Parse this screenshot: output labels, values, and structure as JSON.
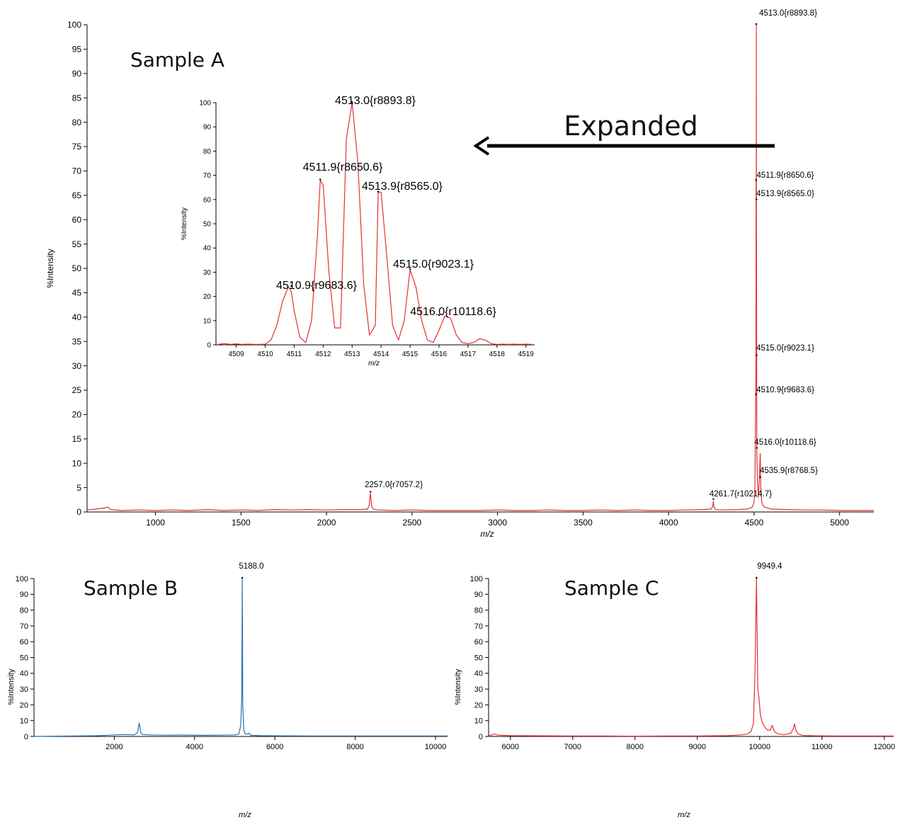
{
  "colors": {
    "red": "#e53030",
    "blue": "#2a6fb0",
    "axis": "#000000"
  },
  "annotation": {
    "arrow_label": "Expanded"
  },
  "chart_data": [
    {
      "id": "sampleA",
      "type": "line",
      "title": "Sample A",
      "xlabel": "m/z",
      "ylabel": "%Intensity",
      "xlim": [
        600,
        5200
      ],
      "ylim": [
        0,
        100
      ],
      "xticks": [
        1000,
        1500,
        2000,
        2500,
        3000,
        3500,
        4000,
        4500,
        5000
      ],
      "yticks": [
        0,
        5,
        10,
        15,
        20,
        25,
        30,
        35,
        40,
        45,
        50,
        55,
        60,
        65,
        70,
        75,
        80,
        85,
        90,
        95,
        100
      ],
      "color": "red",
      "series": [
        {
          "x": [
            600,
            650,
            700,
            720,
            740,
            800,
            900,
            1000,
            1100,
            1200,
            1300,
            1400,
            1500,
            1600,
            1700,
            1800,
            1900,
            2000,
            2100,
            2200,
            2240,
            2250,
            2255,
            2257,
            2260,
            2265,
            2275,
            2300,
            2400,
            2500,
            2600,
            2700,
            2800,
            2900,
            3000,
            3100,
            3200,
            3300,
            3400,
            3500,
            3600,
            3700,
            3800,
            3900,
            4000,
            4100,
            4200,
            4250,
            4258,
            4261.7,
            4265,
            4275,
            4300,
            4400,
            4460,
            4490,
            4500,
            4505,
            4508,
            4510.9,
            4511.9,
            4512.5,
            4513.0,
            4513.9,
            4515.0,
            4516.0,
            4520,
            4525,
            4530,
            4535.9,
            4540,
            4545,
            4550,
            4560,
            4580,
            4600,
            4700,
            4800,
            4900,
            5000,
            5100,
            5200
          ],
          "y": [
            0.4,
            0.6,
            0.8,
            1.0,
            0.5,
            0.3,
            0.4,
            0.3,
            0.4,
            0.3,
            0.5,
            0.3,
            0.4,
            0.3,
            0.5,
            0.4,
            0.5,
            0.4,
            0.5,
            0.5,
            0.6,
            1.5,
            3.5,
            3.8,
            2.5,
            1.0,
            0.6,
            0.4,
            0.3,
            0.4,
            0.3,
            0.3,
            0.3,
            0.3,
            0.4,
            0.3,
            0.3,
            0.4,
            0.3,
            0.3,
            0.4,
            0.3,
            0.4,
            0.3,
            0.3,
            0.4,
            0.5,
            0.6,
            1.2,
            2.2,
            1.0,
            0.5,
            0.4,
            0.5,
            0.6,
            1.0,
            2.0,
            5.0,
            18,
            30,
            68,
            45,
            100,
            60,
            31,
            12,
            6,
            3,
            6,
            12,
            4,
            2,
            1.5,
            1.0,
            0.8,
            0.6,
            0.5,
            0.4,
            0.4,
            0.3,
            0.3,
            0.3
          ]
        }
      ],
      "peak_labels": [
        {
          "x": 4513.0,
          "y": 100,
          "text": "4513.0{r8893.8}"
        },
        {
          "x": 4511.9,
          "y": 68,
          "text": "4511.9{r8650.6}"
        },
        {
          "x": 4513.9,
          "y": 64,
          "text": "4513.9{r8565.0}"
        },
        {
          "x": 4515.0,
          "y": 32,
          "text": "4515.0{r9023.1}"
        },
        {
          "x": 4510.9,
          "y": 24,
          "text": "4510.9{r9683.6}"
        },
        {
          "x": 4516.0,
          "y": 13,
          "text": "4516.0{r10118.6}"
        },
        {
          "x": 4535.9,
          "y": 7,
          "text": "4535.9{r8768.5}"
        },
        {
          "x": 2257.0,
          "y": 4,
          "text": "2257.0{r7057.2}"
        },
        {
          "x": 4261.7,
          "y": 2.5,
          "text": "4261.7{r10214.7}"
        }
      ]
    },
    {
      "id": "inset",
      "type": "line",
      "title": "",
      "xlabel": "m/z",
      "ylabel": "%Intensity",
      "xlim": [
        4508.3,
        4519.3
      ],
      "ylim": [
        0,
        100
      ],
      "xticks": [
        4509,
        4510,
        4511,
        4512,
        4513,
        4514,
        4515,
        4516,
        4517,
        4518,
        4519
      ],
      "yticks": [
        0,
        10,
        20,
        30,
        40,
        50,
        60,
        70,
        80,
        90,
        100
      ],
      "color": "red",
      "series": [
        {
          "x": [
            4508.4,
            4508.6,
            4508.8,
            4509.0,
            4509.2,
            4509.4,
            4509.6,
            4509.8,
            4510.0,
            4510.2,
            4510.4,
            4510.6,
            4510.8,
            4510.9,
            4511.0,
            4511.2,
            4511.4,
            4511.6,
            4511.8,
            4511.9,
            4512.0,
            4512.2,
            4512.4,
            4512.6,
            4512.8,
            4513.0,
            4513.2,
            4513.4,
            4513.6,
            4513.8,
            4513.9,
            4514.0,
            4514.2,
            4514.4,
            4514.6,
            4514.8,
            4515.0,
            4515.2,
            4515.4,
            4515.6,
            4515.8,
            4516.0,
            4516.2,
            4516.4,
            4516.6,
            4516.8,
            4517.0,
            4517.2,
            4517.4,
            4517.6,
            4517.8,
            4518.0,
            4518.2,
            4518.4,
            4518.6,
            4518.8,
            4519.0,
            4519.2
          ],
          "y": [
            0.3,
            0.5,
            0.2,
            0.4,
            0.2,
            0.3,
            0.2,
            0.2,
            0.3,
            2,
            8,
            18,
            24,
            22,
            14,
            3,
            1,
            10,
            45,
            68,
            66,
            30,
            7,
            7,
            85,
            100,
            75,
            25,
            4,
            8,
            63,
            63,
            36,
            8,
            2,
            10,
            31,
            24,
            10,
            2,
            1,
            6,
            12,
            11,
            4,
            1,
            0.5,
            1,
            2.5,
            2,
            0.5,
            0.2,
            0.3,
            0.2,
            0.3,
            0.2,
            0.3,
            0.2
          ]
        }
      ],
      "peak_labels": [
        {
          "x": 4513.0,
          "y": 100,
          "text": "4513.0{r8893.8}"
        },
        {
          "x": 4511.9,
          "y": 68,
          "text": "4511.9{r8650.6}"
        },
        {
          "x": 4513.9,
          "y": 63,
          "text": "4513.9{r8565.0}"
        },
        {
          "x": 4515.0,
          "y": 31,
          "text": "4515.0{r9023.1}"
        },
        {
          "x": 4510.9,
          "y": 24,
          "text": "4510.9{r9683.6}"
        },
        {
          "x": 4516.0,
          "y": 12,
          "text": "4516.0{r10118.6}"
        }
      ]
    },
    {
      "id": "sampleB",
      "type": "line",
      "title": "Sample B",
      "xlabel": "m/z",
      "ylabel": "%Intensity",
      "xlim": [
        0,
        10300
      ],
      "ylim": [
        0,
        100
      ],
      "xticks": [
        2000,
        4000,
        6000,
        8000,
        10000
      ],
      "yticks": [
        0,
        10,
        20,
        30,
        40,
        50,
        60,
        70,
        80,
        90,
        100
      ],
      "color": "blue",
      "series": [
        {
          "x": [
            0,
            500,
            1000,
            1500,
            1900,
            2000,
            2300,
            2500,
            2580,
            2620,
            2660,
            2700,
            2900,
            3300,
            3700,
            4200,
            4700,
            5000,
            5100,
            5150,
            5175,
            5188,
            5200,
            5225,
            5260,
            5300,
            5360,
            5400,
            5600,
            6000,
            7000,
            8000,
            9000,
            10000,
            10300
          ],
          "y": [
            0,
            0.2,
            0.3,
            0.4,
            0.8,
            1.0,
            1.2,
            1.0,
            2.5,
            8.5,
            2.5,
            1.2,
            1.0,
            0.8,
            0.9,
            0.7,
            0.8,
            1.0,
            1.5,
            7,
            25,
            100,
            20,
            4,
            1.5,
            1.5,
            2.0,
            0.7,
            0.5,
            0.4,
            0.3,
            0.3,
            0.3,
            0.3,
            0.3
          ]
        }
      ],
      "peak_labels": [
        {
          "x": 5188.0,
          "y": 100,
          "text": "5188.0"
        }
      ]
    },
    {
      "id": "sampleC",
      "type": "line",
      "title": "Sample C",
      "xlabel": "m/z",
      "ylabel": "%Intensity",
      "xlim": [
        5650,
        12150
      ],
      "ylim": [
        0,
        100
      ],
      "xticks": [
        6000,
        7000,
        8000,
        9000,
        10000,
        11000,
        12000
      ],
      "yticks": [
        0,
        10,
        20,
        30,
        40,
        50,
        60,
        70,
        80,
        90,
        100
      ],
      "color": "red",
      "series": [
        {
          "x": [
            5650,
            5700,
            5750,
            5800,
            6000,
            6500,
            7000,
            7500,
            8000,
            8500,
            9000,
            9500,
            9700,
            9800,
            9860,
            9900,
            9925,
            9949.4,
            9970,
            9990,
            10010,
            10040,
            10080,
            10130,
            10170,
            10200,
            10240,
            10300,
            10400,
            10500,
            10540,
            10560,
            10580,
            10620,
            10700,
            10900,
            11200,
            11600,
            12000,
            12150
          ],
          "y": [
            0.5,
            1.0,
            1.5,
            0.8,
            0.5,
            0.4,
            0.3,
            0.3,
            0.2,
            0.3,
            0.3,
            0.5,
            1.0,
            1.5,
            3.0,
            8,
            40,
            100,
            30,
            24,
            14,
            9,
            6,
            4,
            4,
            7,
            3,
            1.5,
            1.2,
            2.0,
            5,
            8,
            4,
            1.5,
            0.6,
            0.4,
            0.3,
            0.3,
            0.3,
            0.3
          ]
        }
      ],
      "peak_labels": [
        {
          "x": 9949.4,
          "y": 100,
          "text": "9949.4"
        }
      ]
    }
  ]
}
